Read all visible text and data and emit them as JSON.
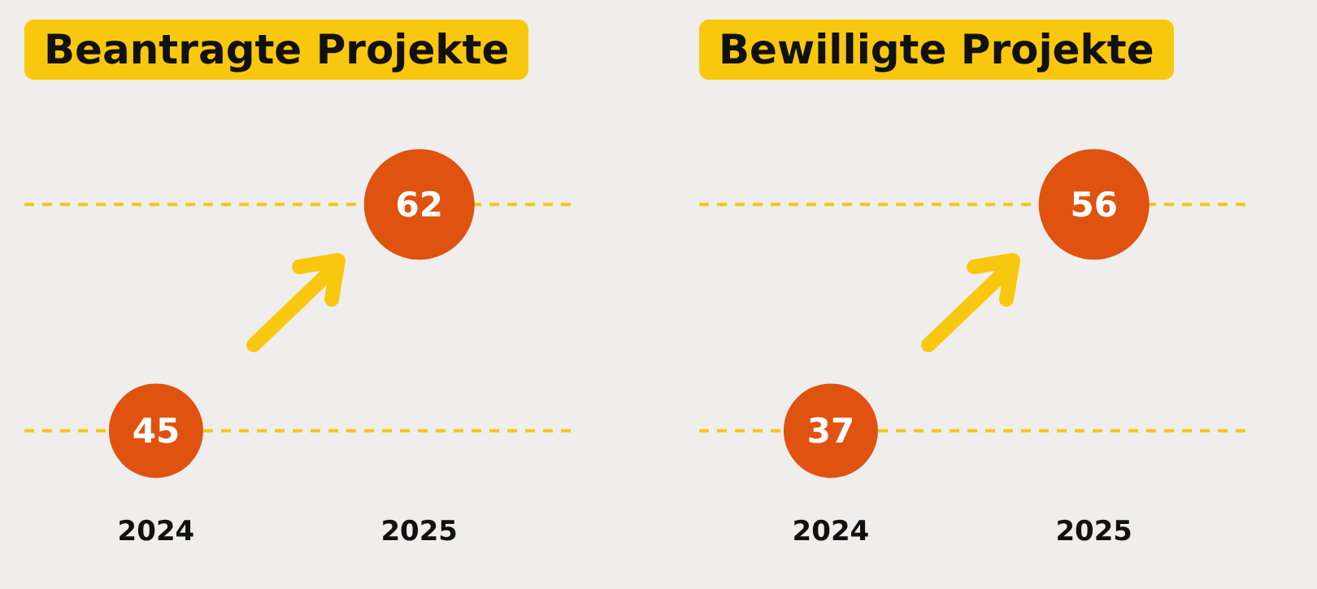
{
  "chart_data": [
    {
      "type": "scatter",
      "title": "Beantragte Projekte",
      "categories": [
        "2024",
        "2025"
      ],
      "values": [
        45,
        62
      ],
      "color": "#e0520f",
      "data_labels": true,
      "grid": false,
      "legend": false,
      "ref_lines": [
        {
          "axis": "y",
          "value": 45,
          "color": "#f5c518",
          "line_style": "dashed"
        },
        {
          "axis": "y",
          "value": 62,
          "color": "#f5c518",
          "line_style": "dashed"
        }
      ]
    },
    {
      "type": "scatter",
      "title": "Bewilligte Projekte",
      "categories": [
        "2024",
        "2025"
      ],
      "values": [
        37,
        56
      ],
      "color": "#e0520f",
      "data_labels": true,
      "grid": false,
      "legend": false,
      "ref_lines": [
        {
          "axis": "y",
          "value": 37,
          "color": "#f5c518",
          "line_style": "dashed"
        },
        {
          "axis": "y",
          "value": 56,
          "color": "#f5c518",
          "line_style": "dashed"
        }
      ]
    }
  ]
}
